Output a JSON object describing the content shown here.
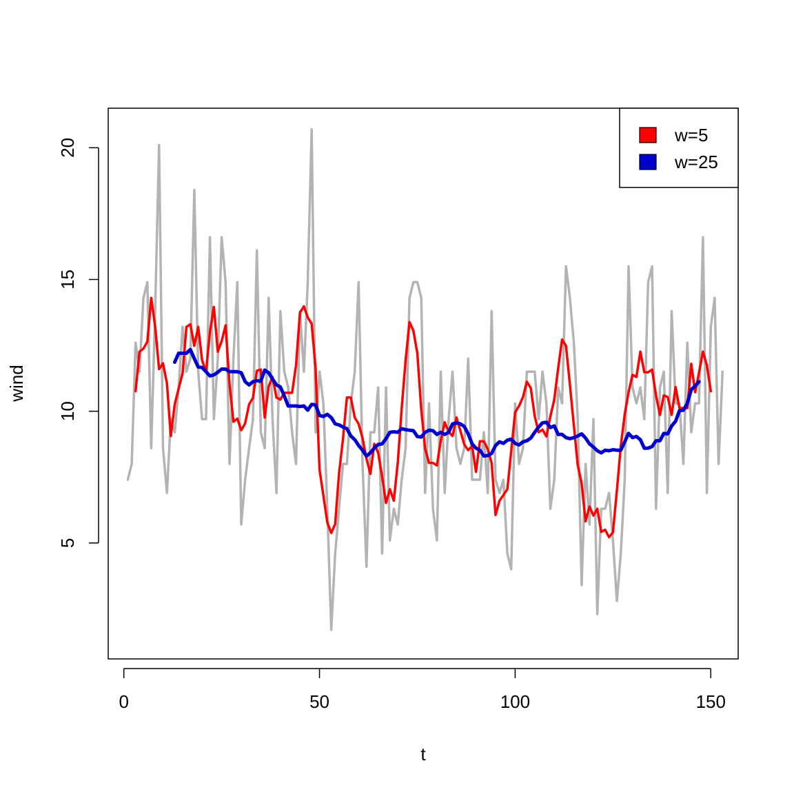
{
  "chart_data": {
    "type": "line",
    "title": "",
    "xlabel": "t",
    "ylabel": "wind",
    "xlim": [
      -4,
      157
    ],
    "ylim": [
      0.6,
      21.5
    ],
    "x_ticks": [
      0,
      50,
      100,
      150
    ],
    "y_ticks": [
      5,
      10,
      15,
      20
    ],
    "x_tick_labels": [
      "0",
      "50",
      "100",
      "150"
    ],
    "y_tick_labels": [
      "5",
      "10",
      "15",
      "20"
    ],
    "grid": false,
    "legend": {
      "position": "top-right",
      "entries": [
        {
          "label": "w=5",
          "color": "#ff0000"
        },
        {
          "label": "w=25",
          "color": "#0000cd"
        }
      ]
    },
    "series": [
      {
        "color": "#b3b3b3",
        "x_start": 1,
        "values": [
          7.4,
          8.0,
          12.6,
          11.5,
          14.3,
          14.9,
          8.6,
          13.8,
          20.1,
          8.6,
          6.9,
          9.7,
          9.2,
          10.9,
          13.2,
          11.5,
          12.0,
          18.4,
          11.5,
          9.7,
          9.7,
          16.6,
          9.7,
          12.0,
          16.6,
          14.9,
          8.0,
          12.0,
          14.9,
          5.7,
          7.4,
          8.6,
          9.7,
          16.1,
          9.2,
          8.6,
          14.3,
          9.7,
          6.9,
          13.8,
          11.5,
          10.9,
          9.2,
          8.0,
          13.8,
          11.5,
          14.9,
          20.7,
          9.2,
          11.5,
          10.3,
          6.3,
          1.7,
          4.6,
          6.3,
          8.0,
          8.0,
          10.3,
          11.5,
          14.9,
          8.0,
          4.1,
          9.2,
          9.2,
          10.9,
          4.6,
          10.9,
          5.1,
          6.3,
          5.7,
          7.4,
          8.6,
          14.3,
          14.9,
          14.9,
          14.3,
          6.9,
          10.3,
          6.3,
          5.1,
          11.5,
          6.9,
          9.7,
          11.5,
          8.6,
          8.0,
          8.6,
          12.0,
          7.4,
          7.4,
          7.4,
          9.2,
          6.9,
          13.8,
          7.4,
          6.9,
          7.4,
          4.6,
          4.0,
          10.3,
          8.0,
          8.6,
          11.5,
          11.5,
          11.5,
          9.7,
          11.5,
          10.3,
          6.3,
          7.4,
          10.9,
          10.3,
          15.5,
          14.3,
          12.6,
          9.7,
          3.4,
          8.0,
          5.7,
          9.7,
          2.3,
          6.3,
          6.3,
          6.9,
          5.1,
          2.8,
          4.6,
          7.4,
          15.5,
          10.9,
          10.3,
          10.9,
          9.7,
          14.9,
          15.5,
          6.3,
          10.9,
          11.5,
          6.9,
          13.8,
          10.3,
          10.3,
          8.0,
          12.6,
          9.2,
          10.3,
          10.3,
          16.6,
          6.9,
          13.2,
          14.3,
          8.0,
          11.5
        ]
      },
      {
        "name": "w=5",
        "color": "#ff0000",
        "x_start": 3,
        "values": [
          10.76,
          12.26,
          12.38,
          12.64,
          14.3,
          13.22,
          11.6,
          11.82,
          11.06,
          9.06,
          10.26,
          10.86,
          11.44,
          13.2,
          13.3,
          12.48,
          13.2,
          11.94,
          11.48,
          13.02,
          13.96,
          12.26,
          12.66,
          13.26,
          11.02,
          9.6,
          9.72,
          9.28,
          9.54,
          10.26,
          10.5,
          11.54,
          11.58,
          9.76,
          10.94,
          11.3,
          10.52,
          10.44,
          10.7,
          10.7,
          10.7,
          11.74,
          13.74,
          13.98,
          13.56,
          13.32,
          11.62,
          7.78,
          6.8,
          5.78,
          5.38,
          5.72,
          7.64,
          8.94,
          10.52,
          10.52,
          9.76,
          9.52,
          8.98,
          8.2,
          7.62,
          8.76,
          8.42,
          7.52,
          6.52,
          7.04,
          6.6,
          8.04,
          10.1,
          11.94,
          13.38,
          13.06,
          12.2,
          10.06,
          8.58,
          8.04,
          8.04,
          7.94,
          8.88,
          9.58,
          9.22,
          9.06,
          9.76,
          9.26,
          8.74,
          8.52,
          8.68,
          7.7,
          8.86,
          8.86,
          8.56,
          8.04,
          6.06,
          6.6,
          6.82,
          7.04,
          8.48,
          9.96,
          10.2,
          10.54,
          11.12,
          10.88,
          9.82,
          9.2,
          9.3,
          9.04,
          9.8,
          10.44,
          11.64,
          12.72,
          12.48,
          11.0,
          9.46,
          7.96,
          7.26,
          5.82,
          6.38,
          6.04,
          6.3,
          5.42,
          5.5,
          5.22,
          5.4,
          6.98,
          8.68,
          9.88,
          10.72,
          11.38,
          11.3,
          12.26,
          11.48,
          11.48,
          11.58,
          10.6,
          9.86,
          10.6,
          10.54,
          9.86,
          10.92,
          10.12,
          10.12,
          10.12,
          11.8,
          10.72,
          11.46,
          12.26,
          11.74,
          10.76
        ]
      },
      {
        "name": "w=25",
        "color": "#0000cd",
        "x_start": 13,
        "values": [
          11.86,
          12.2,
          12.2,
          12.2,
          12.34,
          12.0,
          11.68,
          11.66,
          11.5,
          11.34,
          11.38,
          11.48,
          11.6,
          11.6,
          11.5,
          11.5,
          11.5,
          11.46,
          11.12,
          11.0,
          11.12,
          11.16,
          11.14,
          11.56,
          11.46,
          11.22,
          11.0,
          10.92,
          10.58,
          10.2,
          10.2,
          10.2,
          10.18,
          10.2,
          10.04,
          10.26,
          10.24,
          9.84,
          9.8,
          9.88,
          9.76,
          9.52,
          9.48,
          9.4,
          9.34,
          9.06,
          8.92,
          8.7,
          8.52,
          8.3,
          8.42,
          8.6,
          8.74,
          8.76,
          8.96,
          9.2,
          9.22,
          9.2,
          9.34,
          9.3,
          9.28,
          9.26,
          9.04,
          9.02,
          9.2,
          9.28,
          9.26,
          9.12,
          9.2,
          9.12,
          9.2,
          9.52,
          9.56,
          9.52,
          9.42,
          9.14,
          8.76,
          8.6,
          8.52,
          8.3,
          8.32,
          8.4,
          8.7,
          8.84,
          8.78,
          8.9,
          8.94,
          8.78,
          8.72,
          8.84,
          8.88,
          8.98,
          9.2,
          9.4,
          9.56,
          9.58,
          9.38,
          9.44,
          9.12,
          9.12,
          9.0,
          8.96,
          9.0,
          9.06,
          9.14,
          8.98,
          8.76,
          8.64,
          8.5,
          8.42,
          8.52,
          8.5,
          8.54,
          8.52,
          8.52,
          8.84,
          9.16,
          9.0,
          9.04,
          8.92,
          8.6,
          8.6,
          8.66,
          8.88,
          8.88,
          9.16,
          9.14,
          9.44,
          9.62,
          10.02,
          10.04,
          10.3,
          10.82,
          10.96,
          11.12
        ]
      }
    ]
  }
}
